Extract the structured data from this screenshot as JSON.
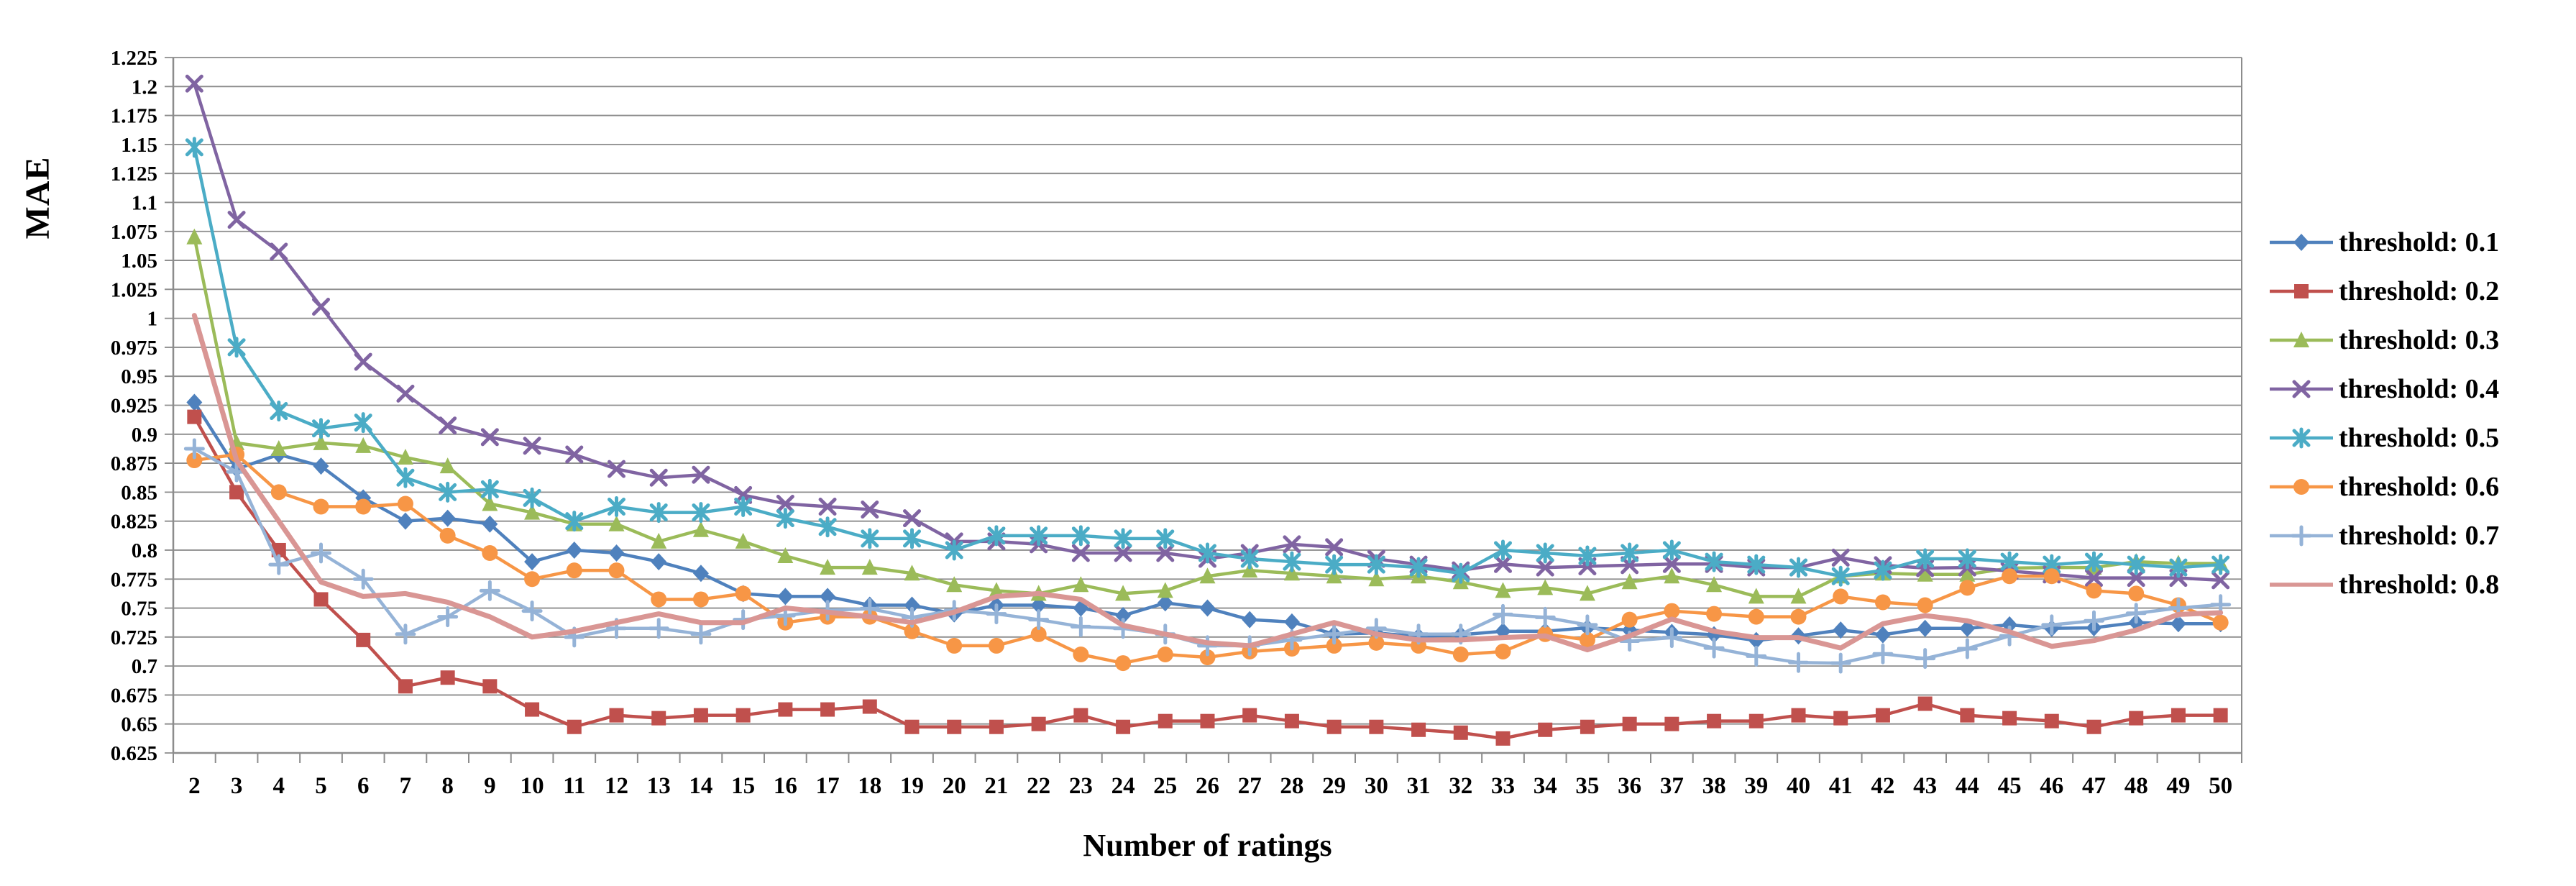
{
  "chart_data": {
    "type": "line",
    "title": "",
    "xlabel": "Number of ratings",
    "ylabel": "MAE",
    "ylim": [
      0.625,
      1.225
    ],
    "ytick_step": 0.025,
    "grid": true,
    "legend_position": "right",
    "axis_color": "#8c8c8c",
    "y_ticks": [
      "0.625",
      "0.65",
      "0.675",
      "0.7",
      "0.725",
      "0.75",
      "0.775",
      "0.8",
      "0.825",
      "0.85",
      "0.875",
      "0.9",
      "0.925",
      "0.95",
      "0.975",
      "1",
      "1.025",
      "1.05",
      "1.075",
      "1.1",
      "1.125",
      "1.15",
      "1.175",
      "1.2",
      "1.225"
    ],
    "x": [
      2,
      3,
      4,
      5,
      6,
      7,
      8,
      9,
      10,
      11,
      12,
      13,
      14,
      15,
      16,
      17,
      18,
      19,
      20,
      21,
      22,
      23,
      24,
      25,
      26,
      27,
      28,
      29,
      30,
      31,
      32,
      33,
      34,
      35,
      36,
      37,
      38,
      39,
      40,
      41,
      42,
      43,
      44,
      45,
      46,
      47,
      48,
      49,
      50
    ],
    "series": [
      {
        "name": "threshold: 0.1",
        "color": "#4F81BD",
        "marker": "diamond",
        "line_width": 4.5,
        "values": [
          0.9275,
          0.87,
          0.8825,
          0.8725,
          0.845,
          0.825,
          0.8275,
          0.8225,
          0.79,
          0.8,
          0.7975,
          0.79,
          0.78,
          0.7625,
          0.76,
          0.76,
          0.7525,
          0.7525,
          0.745,
          0.7525,
          0.7525,
          0.75,
          0.7435,
          0.7545,
          0.75,
          0.74,
          0.738,
          0.7275,
          0.7285,
          0.7255,
          0.727,
          0.73,
          0.73,
          0.733,
          0.731,
          0.729,
          0.727,
          0.722,
          0.726,
          0.731,
          0.727,
          0.7325,
          0.7325,
          0.7355,
          0.7325,
          0.733,
          0.7375,
          0.7365,
          0.7365
        ]
      },
      {
        "name": "threshold: 0.2",
        "color": "#C0504D",
        "marker": "square",
        "line_width": 4.5,
        "values": [
          0.915,
          0.85,
          0.8,
          0.7575,
          0.7225,
          0.6825,
          0.69,
          0.6825,
          0.6625,
          0.6475,
          0.6575,
          0.655,
          0.6575,
          0.6575,
          0.6625,
          0.6625,
          0.665,
          0.6475,
          0.6475,
          0.6475,
          0.65,
          0.6575,
          0.6475,
          0.6525,
          0.6525,
          0.6575,
          0.6525,
          0.6475,
          0.6475,
          0.645,
          0.6425,
          0.6375,
          0.645,
          0.6475,
          0.65,
          0.65,
          0.6525,
          0.6525,
          0.6575,
          0.655,
          0.6575,
          0.6675,
          0.6575,
          0.655,
          0.6525,
          0.6475,
          0.655,
          0.6575,
          0.6575
        ]
      },
      {
        "name": "threshold: 0.3",
        "color": "#9BBB59",
        "marker": "triangle",
        "line_width": 4.5,
        "values": [
          1.07,
          0.8925,
          0.8875,
          0.8925,
          0.89,
          0.88,
          0.8725,
          0.84,
          0.8325,
          0.8225,
          0.8225,
          0.8075,
          0.8175,
          0.8075,
          0.795,
          0.785,
          0.785,
          0.78,
          0.77,
          0.765,
          0.7625,
          0.77,
          0.7625,
          0.765,
          0.7775,
          0.7825,
          0.78,
          0.7775,
          0.775,
          0.7775,
          0.7725,
          0.765,
          0.7675,
          0.7625,
          0.7725,
          0.7775,
          0.77,
          0.76,
          0.76,
          0.7775,
          0.78,
          0.779,
          0.779,
          0.7845,
          0.785,
          0.785,
          0.79,
          0.7885,
          0.7885
        ]
      },
      {
        "name": "threshold: 0.4",
        "color": "#8064A2",
        "marker": "x",
        "line_width": 4.5,
        "values": [
          1.2025,
          1.085,
          1.0575,
          1.01,
          0.9625,
          0.935,
          0.9075,
          0.8975,
          0.89,
          0.8825,
          0.87,
          0.8625,
          0.865,
          0.8475,
          0.84,
          0.8375,
          0.835,
          0.8275,
          0.8075,
          0.8075,
          0.805,
          0.7975,
          0.7975,
          0.7975,
          0.7925,
          0.7975,
          0.805,
          0.8025,
          0.7925,
          0.7875,
          0.7825,
          0.788,
          0.785,
          0.786,
          0.787,
          0.788,
          0.788,
          0.785,
          0.785,
          0.7935,
          0.787,
          0.7845,
          0.785,
          0.782,
          0.779,
          0.776,
          0.776,
          0.776,
          0.774
        ]
      },
      {
        "name": "threshold: 0.5",
        "color": "#4BACC6",
        "marker": "star",
        "line_width": 4.5,
        "values": [
          1.1475,
          0.975,
          0.92,
          0.905,
          0.91,
          0.8625,
          0.85,
          0.8525,
          0.845,
          0.825,
          0.8375,
          0.8325,
          0.8325,
          0.8375,
          0.8275,
          0.82,
          0.81,
          0.81,
          0.8,
          0.8125,
          0.8125,
          0.8125,
          0.81,
          0.81,
          0.7975,
          0.7925,
          0.79,
          0.7875,
          0.7875,
          0.785,
          0.78,
          0.8,
          0.7975,
          0.795,
          0.7975,
          0.8,
          0.79,
          0.7875,
          0.785,
          0.7775,
          0.7825,
          0.7925,
          0.7925,
          0.79,
          0.7875,
          0.79,
          0.7875,
          0.785,
          0.7875
        ]
      },
      {
        "name": "threshold: 0.6",
        "color": "#F79646",
        "marker": "circle",
        "line_width": 4.5,
        "values": [
          0.8775,
          0.8825,
          0.85,
          0.8375,
          0.8375,
          0.84,
          0.8125,
          0.7975,
          0.775,
          0.7825,
          0.7825,
          0.7575,
          0.7575,
          0.7625,
          0.7375,
          0.7425,
          0.7425,
          0.73,
          0.7175,
          0.7175,
          0.7275,
          0.71,
          0.7025,
          0.71,
          0.7075,
          0.7125,
          0.715,
          0.7175,
          0.72,
          0.7175,
          0.71,
          0.7125,
          0.7275,
          0.7225,
          0.74,
          0.7475,
          0.745,
          0.7425,
          0.7425,
          0.76,
          0.755,
          0.7525,
          0.7675,
          0.7775,
          0.7775,
          0.765,
          0.7625,
          0.7525,
          0.7375
        ]
      },
      {
        "name": "threshold: 0.7",
        "color": "#95B3D7",
        "marker": "plus",
        "line_width": 4.5,
        "values": [
          0.8875,
          0.8675,
          0.7875,
          0.7975,
          0.775,
          0.7275,
          0.7425,
          0.765,
          0.7475,
          0.725,
          0.7325,
          0.7325,
          0.7275,
          0.74,
          0.7435,
          0.748,
          0.7495,
          0.742,
          0.748,
          0.745,
          0.74,
          0.734,
          0.7325,
          0.7275,
          0.7175,
          0.7175,
          0.7225,
          0.7275,
          0.7325,
          0.7275,
          0.7275,
          0.7445,
          0.742,
          0.7355,
          0.7215,
          0.7245,
          0.7155,
          0.7085,
          0.703,
          0.7025,
          0.7105,
          0.7065,
          0.715,
          0.726,
          0.7355,
          0.739,
          0.7455,
          0.75,
          0.753
        ]
      },
      {
        "name": "threshold: 0.8",
        "color": "#D99694",
        "marker": "none",
        "line_width": 7,
        "values": [
          1.0025,
          0.8775,
          0.825,
          0.7725,
          0.76,
          0.7625,
          0.755,
          0.7425,
          0.725,
          0.73,
          0.7375,
          0.745,
          0.7375,
          0.7375,
          0.75,
          0.7465,
          0.7425,
          0.7375,
          0.7465,
          0.76,
          0.7625,
          0.7575,
          0.735,
          0.7275,
          0.72,
          0.7175,
          0.7275,
          0.7375,
          0.7275,
          0.7225,
          0.7225,
          0.7245,
          0.726,
          0.714,
          0.726,
          0.7405,
          0.73,
          0.7245,
          0.7245,
          0.7155,
          0.7365,
          0.7435,
          0.739,
          0.7295,
          0.717,
          0.722,
          0.731,
          0.7445,
          0.746
        ]
      }
    ]
  }
}
